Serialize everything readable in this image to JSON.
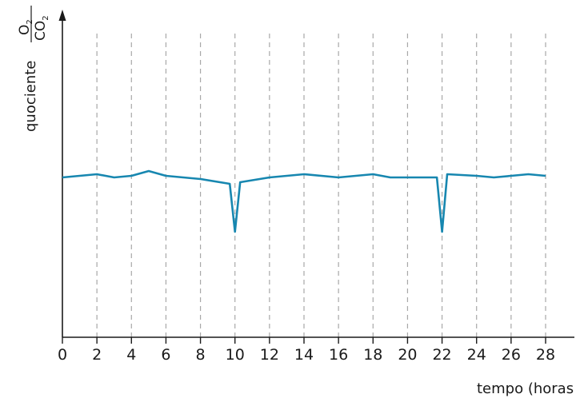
{
  "chart_data": {
    "type": "line",
    "title": "",
    "xlabel": "tempo (horas",
    "ylabel": {
      "prefix": "quociente",
      "numerator_main": "O",
      "numerator_sub": "2",
      "denominator_main": "CO",
      "denominator_sub": "2"
    },
    "xlim": [
      0,
      28
    ],
    "x_ticks": [
      "0",
      "2",
      "4",
      "6",
      "8",
      "10",
      "12",
      "14",
      "16",
      "18",
      "20",
      "22",
      "24",
      "26",
      "28"
    ],
    "grid": "vertical dashed at every 2 hours",
    "y_tick_labels": false,
    "series": [
      {
        "color": "#1787b0",
        "x": [
          0,
          2,
          3,
          4,
          5,
          6,
          8,
          9.7,
          10,
          10.3,
          12,
          14,
          16,
          18,
          19,
          21.7,
          22,
          22.3,
          24,
          25,
          26,
          27,
          28
        ],
        "y": [
          0.5,
          0.51,
          0.5,
          0.505,
          0.52,
          0.505,
          0.495,
          0.48,
          0.33,
          0.485,
          0.5,
          0.51,
          0.5,
          0.51,
          0.5,
          0.5,
          0.33,
          0.51,
          0.505,
          0.5,
          0.505,
          0.51,
          0.505
        ]
      }
    ]
  }
}
